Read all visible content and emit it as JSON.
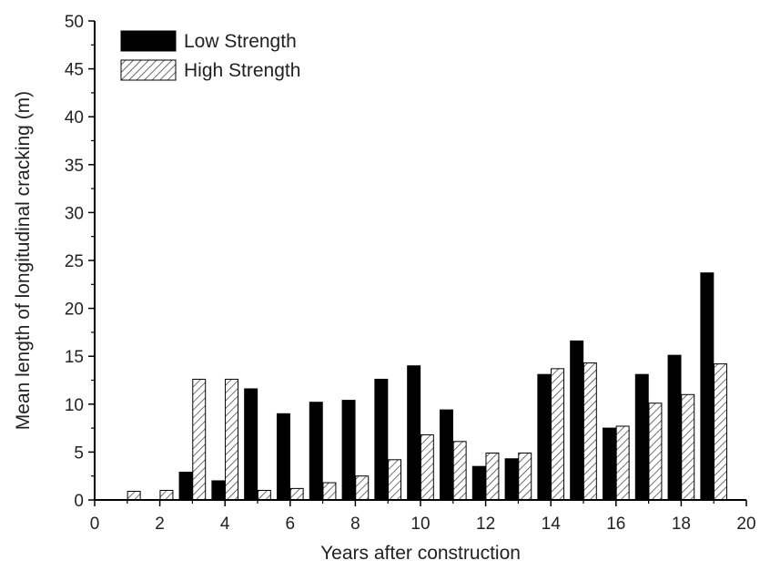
{
  "chart_data": {
    "type": "bar",
    "title": "",
    "xlabel": "Years after construction",
    "ylabel": "Mean length of longitudinal cracking (m)",
    "xlim": [
      0,
      20
    ],
    "ylim": [
      0,
      50
    ],
    "xticks": [
      0,
      2,
      4,
      6,
      8,
      10,
      12,
      14,
      16,
      18,
      20
    ],
    "yticks": [
      0,
      5,
      10,
      15,
      20,
      25,
      30,
      35,
      40,
      45,
      50
    ],
    "grid": false,
    "legend_position": "top-left",
    "x": [
      1,
      2,
      3,
      4,
      5,
      6,
      7,
      8,
      9,
      10,
      11,
      12,
      13,
      14,
      15,
      16,
      17,
      18,
      19
    ],
    "series": [
      {
        "name": "Low Strength",
        "color": "#000000",
        "fill": "solid",
        "values": [
          0,
          0,
          2.9,
          2.0,
          11.6,
          9.0,
          10.2,
          10.4,
          12.6,
          14.0,
          9.4,
          3.5,
          4.3,
          13.1,
          16.6,
          7.5,
          13.1,
          15.1,
          23.7
        ]
      },
      {
        "name": "High Strength",
        "color": "#ffffff",
        "fill": "diagonal-hatch",
        "values": [
          0.9,
          1.0,
          12.6,
          12.6,
          1.0,
          1.2,
          1.8,
          2.5,
          4.2,
          6.8,
          6.1,
          4.9,
          4.9,
          13.7,
          14.3,
          7.7,
          10.1,
          11.0,
          14.2
        ]
      }
    ]
  }
}
